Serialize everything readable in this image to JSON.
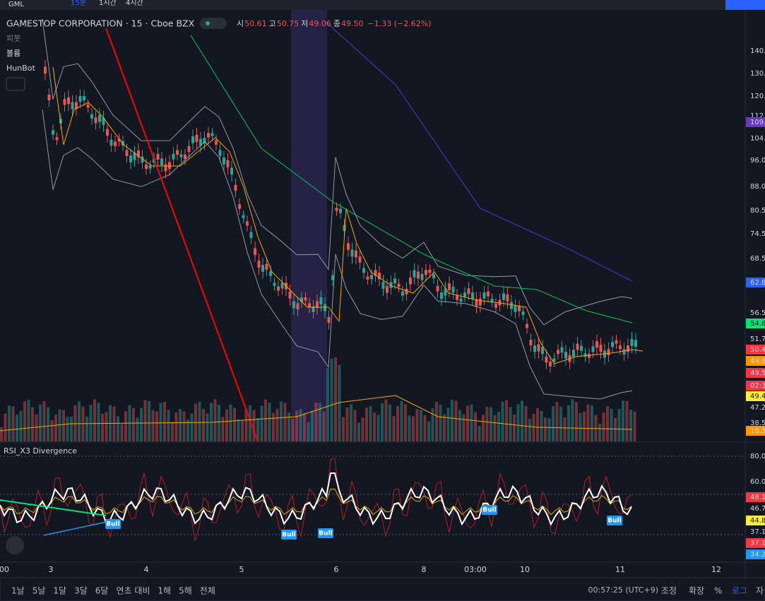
{
  "toolbar": {
    "symbol": "GML",
    "intervals": [
      "15분",
      "1시간",
      "4시간"
    ]
  },
  "header": {
    "title": "GAMESTOP CORPORATION · 15 · Cboe BZX",
    "open_label": "시",
    "open": "50.61",
    "high_label": "고",
    "high": "50.75",
    "low_label": "저",
    "low": "49.06",
    "close_label": "종",
    "close": "49.50",
    "change": "−1.33 (−2.62%)"
  },
  "legend": [
    "피봇",
    "볼륨",
    "HunBot"
  ],
  "price_axis": [
    "140.",
    "130.",
    "120.",
    "112",
    "109.",
    "104.",
    "96.0",
    "88.0",
    "80.5",
    "74.5",
    "68.5",
    "62.8",
    "56.5",
    "54.6",
    "51.7",
    "50.4",
    "49.8",
    "49.5",
    "02:3",
    "49.4",
    "47.2",
    "38.5",
    "16.3"
  ],
  "rsi": {
    "title": "RSI_X3 Divergence",
    "axis": [
      "80.0",
      "60.0",
      "48.1",
      "46.7",
      "44.8",
      "37.1",
      "37.1",
      "34.2"
    ],
    "signals": [
      "Bull",
      "Bull",
      "Bull",
      "Bull",
      "Bull"
    ]
  },
  "time_axis": [
    "00",
    "3",
    "4",
    "5",
    "6",
    "8",
    "03:00",
    "10",
    "11",
    "12"
  ],
  "bottom_bar": {
    "ranges": [
      "1날",
      "5날",
      "1달",
      "3달",
      "6달",
      "연초 대비",
      "1해",
      "5해",
      "전체"
    ],
    "clock": "00:57:25 (UTC+9)",
    "options": [
      "조정",
      "확장",
      "%",
      "로그",
      "자"
    ]
  }
}
